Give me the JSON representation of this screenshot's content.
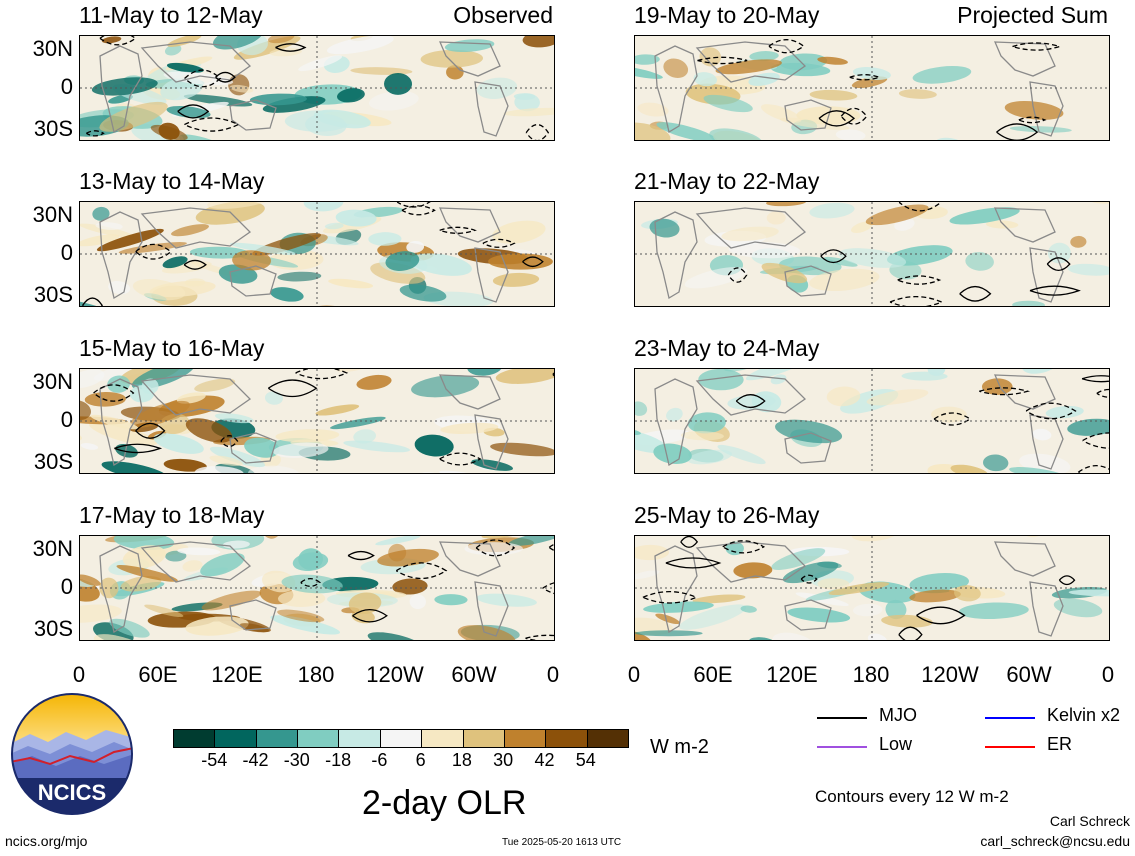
{
  "panels": [
    {
      "title": "11-May to 12-May",
      "tag": "Observed",
      "col": "left"
    },
    {
      "title": "13-May to 14-May",
      "tag": "",
      "col": "left"
    },
    {
      "title": "15-May to 16-May",
      "tag": "",
      "col": "left"
    },
    {
      "title": "17-May to 18-May",
      "tag": "",
      "col": "left"
    },
    {
      "title": "19-May to 20-May",
      "tag": "Projected Sum",
      "col": "right"
    },
    {
      "title": "21-May to 22-May",
      "tag": "",
      "col": "right"
    },
    {
      "title": "23-May to 24-May",
      "tag": "",
      "col": "right"
    },
    {
      "title": "25-May to 26-May",
      "tag": "",
      "col": "right"
    }
  ],
  "lat_labels": [
    "30N",
    "0",
    "30S"
  ],
  "lon_labels": [
    "0",
    "60E",
    "120E",
    "180",
    "120W",
    "60W",
    "0"
  ],
  "colorbar": {
    "colors": [
      "#003c30",
      "#01665e",
      "#35978f",
      "#80cdc1",
      "#c7eae5",
      "#f5f5f5",
      "#f6e8c3",
      "#dfc27d",
      "#bf812d",
      "#8c510a",
      "#543005"
    ],
    "ticks": [
      "-54",
      "-42",
      "-30",
      "-18",
      "-6",
      "6",
      "18",
      "30",
      "42",
      "54"
    ],
    "units": "W m-2"
  },
  "legend": [
    {
      "label": "MJO",
      "color": "#000000"
    },
    {
      "label": "Kelvin x2",
      "color": "#0000ff"
    },
    {
      "label": "Low",
      "color": "#a050e0"
    },
    {
      "label": "ER",
      "color": "#ff0000"
    }
  ],
  "main_title": "2-day OLR",
  "contour_note": "Contours every 12 W m-2",
  "logo_text": "NCICS",
  "author": "Carl Schreck",
  "email": "carl_schreck@ncsu.edu",
  "website": "ncics.org/mjo",
  "timestamp": "Tue 2025-05-20 1613 UTC"
}
